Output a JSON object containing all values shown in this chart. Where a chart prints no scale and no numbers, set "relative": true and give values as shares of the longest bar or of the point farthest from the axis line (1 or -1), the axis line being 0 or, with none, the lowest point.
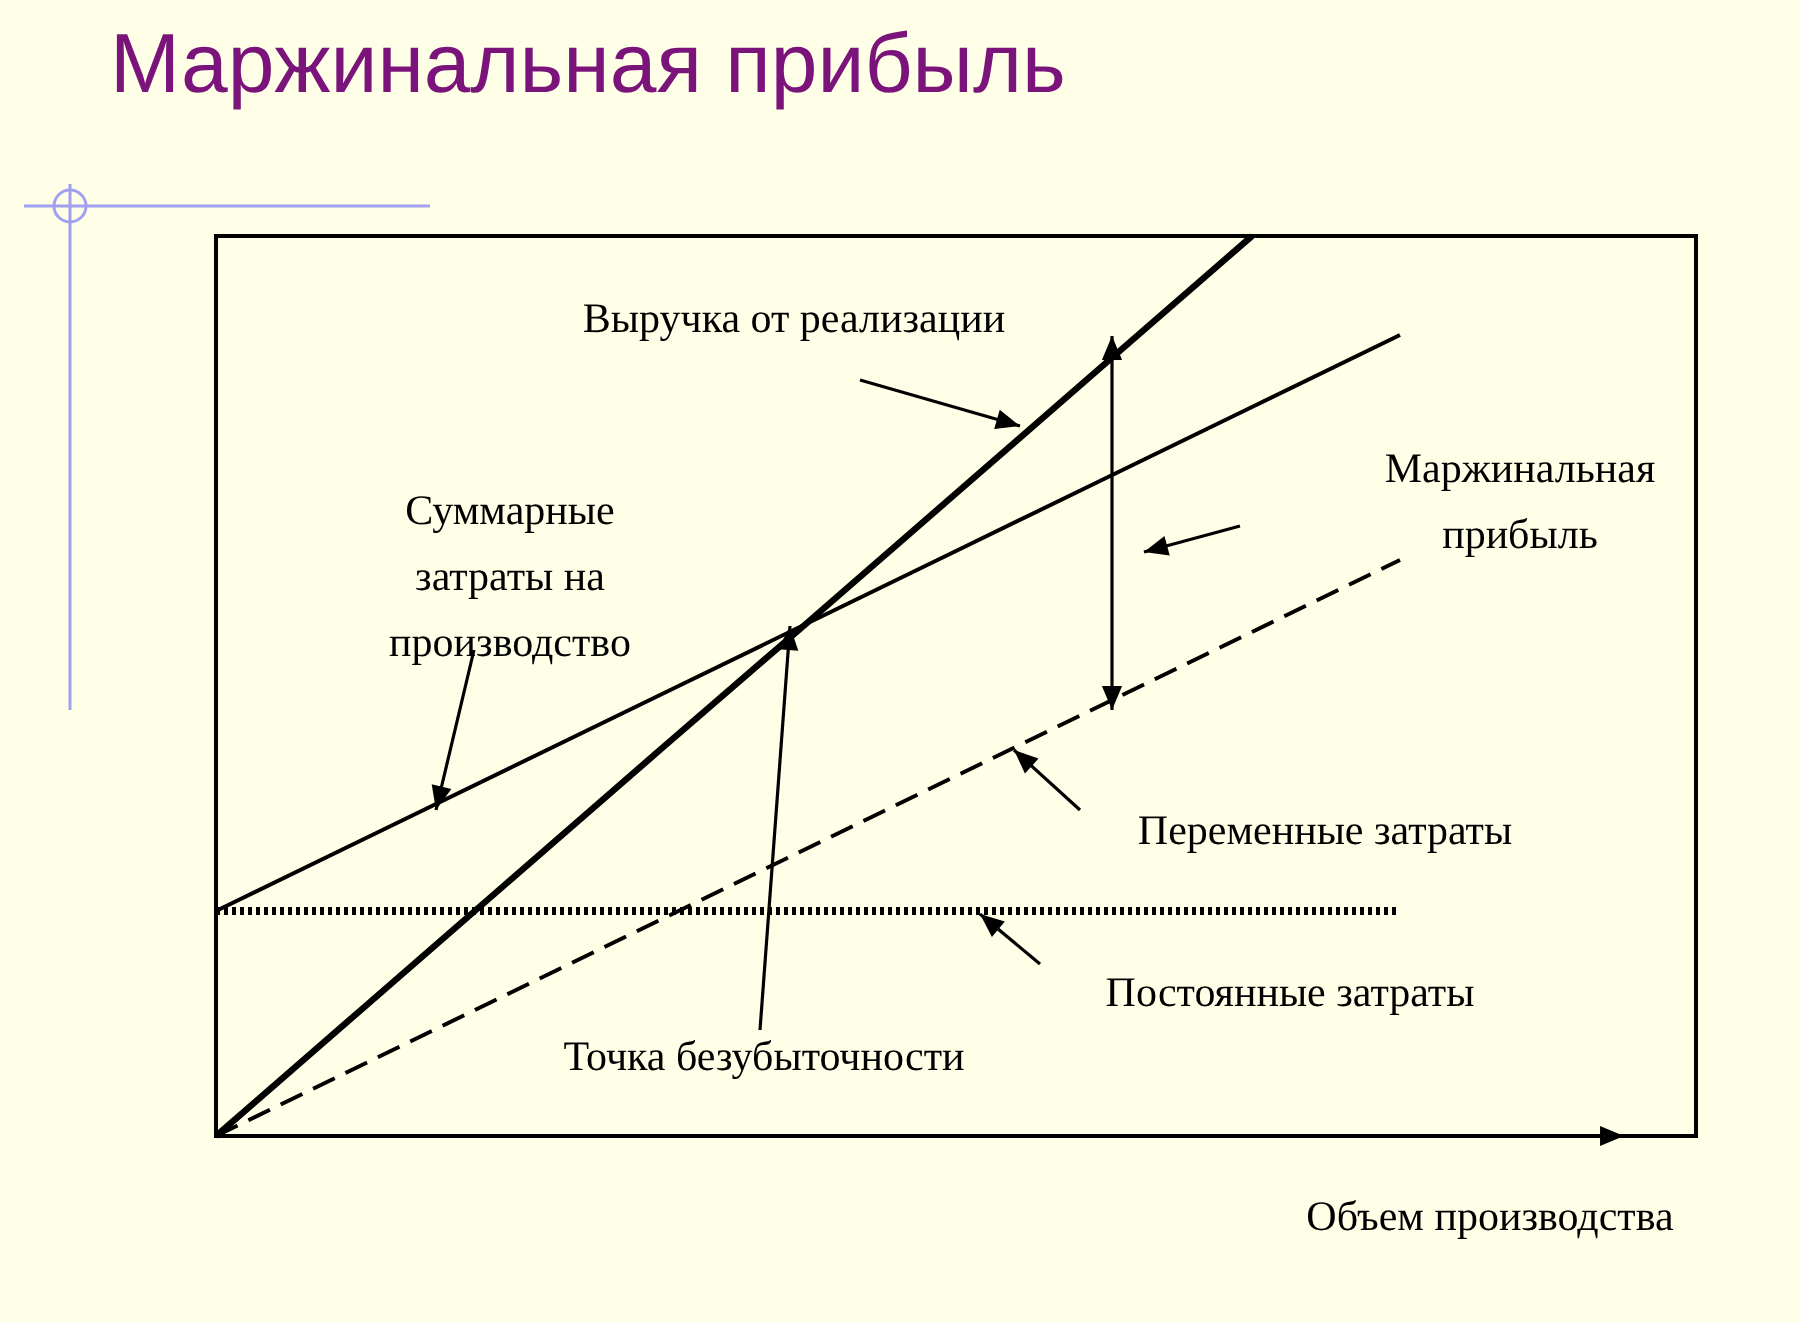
{
  "chart_data": {
    "type": "line",
    "title": "Маржинальная прибыль",
    "xlabel": "Объем производства",
    "relative": true,
    "marker": "none",
    "categories": [
      null,
      null,
      null,
      null,
      null,
      null,
      null,
      null,
      null,
      null,
      null
    ],
    "series": [
      {
        "color": "#000000",
        "line_style": "solid",
        "values": [
          0,
          0.143,
          0.286,
          0.429,
          0.571,
          0.714,
          0.857,
          1,
          null,
          null,
          null
        ]
      },
      {
        "color": "#000000",
        "line_style": "solid",
        "values": [
          0.25,
          0.33,
          0.41,
          0.49,
          0.57,
          0.65,
          0.73,
          0.81,
          0.89,
          null,
          null
        ]
      },
      {
        "color": "#000000",
        "line_style": "dotted",
        "values": [
          0.25,
          0.25,
          0.25,
          0.25,
          0.25,
          0.25,
          0.25,
          0.25,
          0.25,
          null,
          null
        ]
      },
      {
        "color": "#000000",
        "line_style": "dashed",
        "values": [
          0,
          0.08,
          0.16,
          0.24,
          0.32,
          0.4,
          0.48,
          0.56,
          0.64,
          null,
          null
        ]
      }
    ],
    "annotations": [
      "Выручка от реализации",
      "Суммарные затраты на производство",
      "Маржинальная прибыль",
      "Переменные затраты",
      "Постоянные затраты",
      "Точка безубыточности"
    ]
  }
}
